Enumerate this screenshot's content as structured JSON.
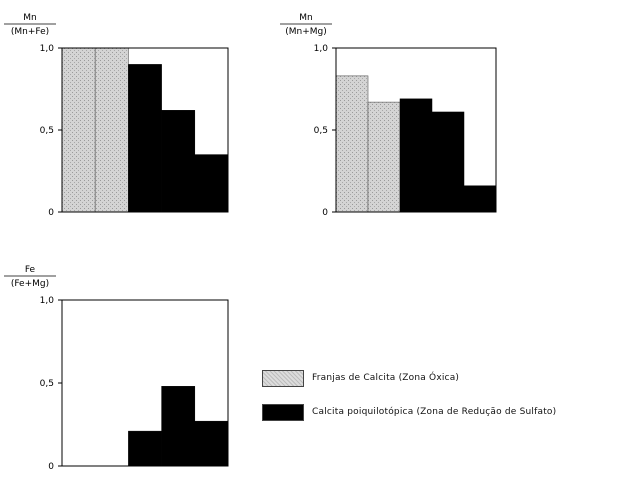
{
  "colors": {
    "oxic": "#cfcfcf",
    "sulfate": "#000000",
    "axis": "#000000"
  },
  "chart_data": [
    {
      "type": "bar",
      "title": "",
      "ylabel_numerator": "Mn",
      "ylabel_denominator": "(Mn+Fe)",
      "yticks": [
        "1,0",
        "0,5",
        "0"
      ],
      "ylim": [
        0,
        1
      ],
      "bars": [
        {
          "group": "oxic",
          "value": 1.0
        },
        {
          "group": "oxic",
          "value": 1.0
        },
        {
          "group": "sulfate",
          "value": 0.9
        },
        {
          "group": "sulfate",
          "value": 0.62
        },
        {
          "group": "sulfate",
          "value": 0.35
        }
      ]
    },
    {
      "type": "bar",
      "title": "",
      "ylabel_numerator": "Mn",
      "ylabel_denominator": "(Mn+Mg)",
      "yticks": [
        "1,0",
        "0,5",
        "0"
      ],
      "ylim": [
        0,
        1
      ],
      "bars": [
        {
          "group": "oxic",
          "value": 0.83
        },
        {
          "group": "oxic",
          "value": 0.67
        },
        {
          "group": "sulfate",
          "value": 0.69
        },
        {
          "group": "sulfate",
          "value": 0.61
        },
        {
          "group": "sulfate",
          "value": 0.16
        }
      ]
    },
    {
      "type": "bar",
      "title": "",
      "ylabel_numerator": "Fe",
      "ylabel_denominator": "(Fe+Mg)",
      "yticks": [
        "1,0",
        "0,5",
        "0"
      ],
      "ylim": [
        0,
        1
      ],
      "bars": [
        {
          "group": "none",
          "value": 0
        },
        {
          "group": "none",
          "value": 0
        },
        {
          "group": "sulfate",
          "value": 0.21
        },
        {
          "group": "sulfate",
          "value": 0.48
        },
        {
          "group": "sulfate",
          "value": 0.27
        }
      ]
    }
  ],
  "legend": {
    "items": [
      {
        "key": "oxic",
        "label": "Franjas  de  Calcita  (Zona  Óxica)"
      },
      {
        "key": "sulfate",
        "label": "Calcita  poiquilotópica  (Zona  de  Redução  de  Sulfato)"
      }
    ]
  }
}
